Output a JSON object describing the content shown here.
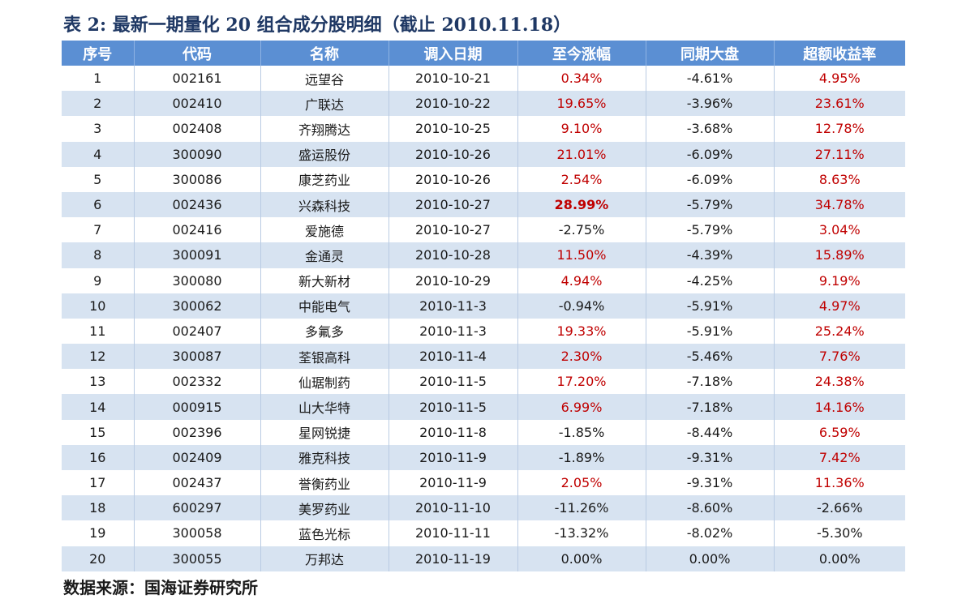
{
  "title": "表 2:  最新一期量化 20 组合成分股明细（截止 2010.11.18）",
  "source": "数据来源：国海证券研究所",
  "colors": {
    "header_bg": "#5b8fd3",
    "stripe_bg": "#d7e3f1",
    "positive": "#c00000"
  },
  "table": {
    "headers": [
      "序号",
      "代码",
      "名称",
      "调入日期",
      "至今涨幅",
      "同期大盘",
      "超额收益率"
    ],
    "rows": [
      [
        "1",
        "002161",
        "远望谷",
        "2010-10-21",
        "0.34%",
        "-4.61%",
        "4.95%"
      ],
      [
        "2",
        "002410",
        "广联达",
        "2010-10-22",
        "19.65%",
        "-3.96%",
        "23.61%"
      ],
      [
        "3",
        "002408",
        "齐翔腾达",
        "2010-10-25",
        "9.10%",
        "-3.68%",
        "12.78%"
      ],
      [
        "4",
        "300090",
        "盛运股份",
        "2010-10-26",
        "21.01%",
        "-6.09%",
        "27.11%"
      ],
      [
        "5",
        "300086",
        "康芝药业",
        "2010-10-26",
        "2.54%",
        "-6.09%",
        "8.63%"
      ],
      [
        "6",
        "002436",
        "兴森科技",
        "2010-10-27",
        "28.99%",
        "-5.79%",
        "34.78%"
      ],
      [
        "7",
        "002416",
        "爱施德",
        "2010-10-27",
        "-2.75%",
        "-5.79%",
        "3.04%"
      ],
      [
        "8",
        "300091",
        "金通灵",
        "2010-10-28",
        "11.50%",
        "-4.39%",
        "15.89%"
      ],
      [
        "9",
        "300080",
        "新大新材",
        "2010-10-29",
        "4.94%",
        "-4.25%",
        "9.19%"
      ],
      [
        "10",
        "300062",
        "中能电气",
        "2010-11-3",
        "-0.94%",
        "-5.91%",
        "4.97%"
      ],
      [
        "11",
        "002407",
        "多氟多",
        "2010-11-3",
        "19.33%",
        "-5.91%",
        "25.24%"
      ],
      [
        "12",
        "300087",
        "荃银高科",
        "2010-11-4",
        "2.30%",
        "-5.46%",
        "7.76%"
      ],
      [
        "13",
        "002332",
        "仙琚制药",
        "2010-11-5",
        "17.20%",
        "-7.18%",
        "24.38%"
      ],
      [
        "14",
        "000915",
        "山大华特",
        "2010-11-5",
        "6.99%",
        "-7.18%",
        "14.16%"
      ],
      [
        "15",
        "002396",
        "星网锐捷",
        "2010-11-8",
        "-1.85%",
        "-8.44%",
        "6.59%"
      ],
      [
        "16",
        "002409",
        "雅克科技",
        "2010-11-9",
        "-1.89%",
        "-9.31%",
        "7.42%"
      ],
      [
        "17",
        "002437",
        "誉衡药业",
        "2010-11-9",
        "2.05%",
        "-9.31%",
        "11.36%"
      ],
      [
        "18",
        "600297",
        "美罗药业",
        "2010-11-10",
        "-11.26%",
        "-8.60%",
        "-2.66%"
      ],
      [
        "19",
        "300058",
        "蓝色光标",
        "2010-11-11",
        "-13.32%",
        "-8.02%",
        "-5.30%"
      ],
      [
        "20",
        "300055",
        "万邦达",
        "2010-11-19",
        "0.00%",
        "0.00%",
        "0.00%"
      ]
    ],
    "highlight": {
      "row": 5,
      "col": 4
    }
  }
}
